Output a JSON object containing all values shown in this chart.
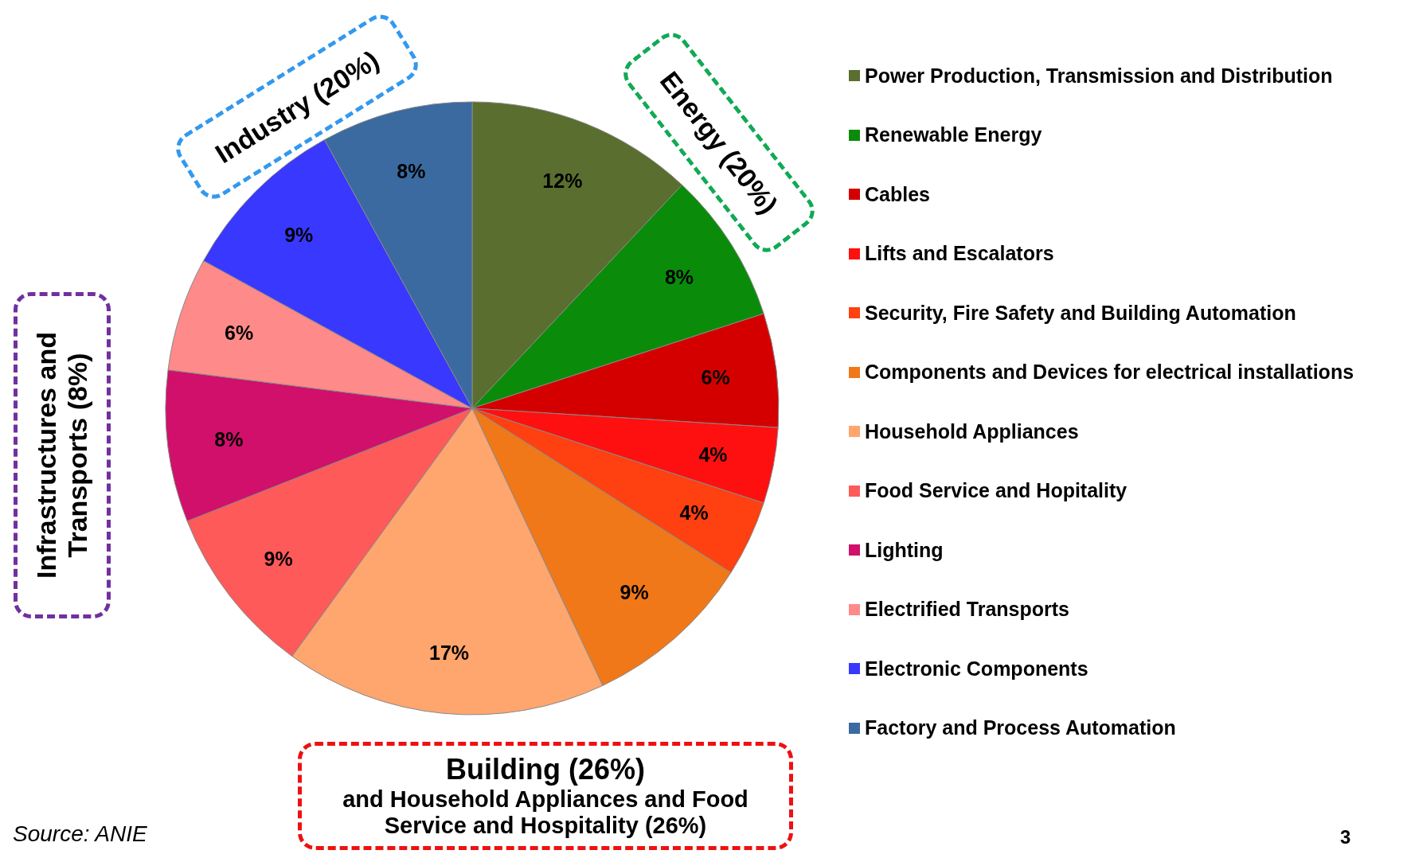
{
  "chart_data": {
    "type": "pie",
    "categories": [
      "Power Production, Transmission and Distribution",
      "Renewable Energy",
      "Cables",
      "Lifts and Escalators",
      "Security, Fire Safety and Building Automation",
      "Components and Devices for electrical installations",
      "Household Appliances",
      "Food Service and Hopitality",
      "Lighting",
      "Electrified Transports",
      "Electronic Components",
      "Factory and Process Automation"
    ],
    "values": [
      12,
      8,
      6,
      4,
      4,
      9,
      17,
      9,
      8,
      6,
      9,
      8
    ],
    "value_labels": [
      "12%",
      "8%",
      "6%",
      "4%",
      "4%",
      "9%",
      "17%",
      "9%",
      "8%",
      "6%",
      "9%",
      "8%"
    ],
    "colors": [
      "#5a6e2f",
      "#0a8c0a",
      "#d40000",
      "#ff1010",
      "#ff4010",
      "#f07818",
      "#ffa56e",
      "#ff5a5a",
      "#d0106a",
      "#ff8a8a",
      "#3838ff",
      "#3a6aa0"
    ],
    "legend": "right",
    "annotations": [
      "Industry (20%)",
      "Energy (20%)",
      "Infrastructures and Transports  (8%)",
      "Building (26%)",
      "and Household Appliances and Food Service and Hospitality (26%)",
      "Source: ANIE",
      "3"
    ]
  }
}
